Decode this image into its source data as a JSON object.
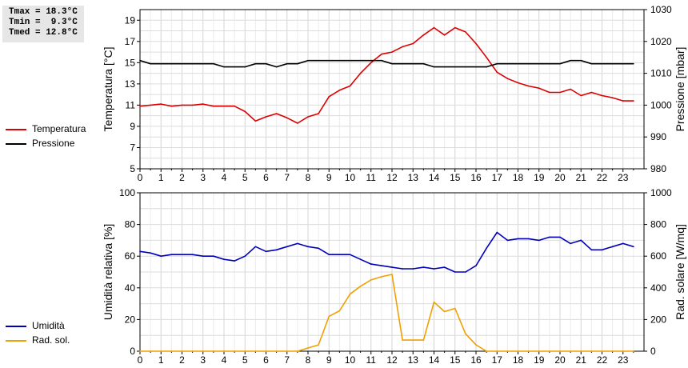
{
  "stats": {
    "tmax": "Tmax = 18.3°C",
    "tmin": "Tmin =  9.3°C",
    "tmed": "Tmed = 12.8°C"
  },
  "chart_data": [
    {
      "type": "line",
      "x_ticks": [
        0,
        1,
        2,
        3,
        4,
        5,
        6,
        7,
        8,
        9,
        10,
        11,
        12,
        13,
        14,
        15,
        16,
        17,
        18,
        19,
        20,
        21,
        22,
        23
      ],
      "xlim": [
        0,
        24
      ],
      "grid": true,
      "legend_placement": "left",
      "left_axis": {
        "label": "Temperatura [°C]",
        "ylim": [
          5,
          20
        ],
        "ticks": [
          5,
          7,
          9,
          11,
          13,
          15,
          17,
          19
        ]
      },
      "right_axis": {
        "label": "Pressione [mbar]",
        "ylim": [
          980,
          1030
        ],
        "ticks": [
          980,
          990,
          1000,
          1010,
          1020,
          1030
        ]
      },
      "series": [
        {
          "name": "Temperatura",
          "axis": "left",
          "color": "#dd0000",
          "x": [
            0,
            0.5,
            1,
            1.5,
            2,
            2.5,
            3,
            3.5,
            4,
            4.5,
            5,
            5.5,
            6,
            6.5,
            7,
            7.5,
            8,
            8.5,
            9,
            9.5,
            10,
            10.5,
            11,
            11.5,
            12,
            12.5,
            13,
            13.5,
            14,
            14.5,
            15,
            15.5,
            16,
            16.5,
            17,
            17.5,
            18,
            18.5,
            19,
            19.5,
            20,
            20.5,
            21,
            21.5,
            22,
            22.5,
            23,
            23.5
          ],
          "y": [
            10.9,
            11.0,
            11.1,
            10.9,
            11.0,
            11.0,
            11.1,
            10.9,
            10.9,
            10.9,
            10.4,
            9.5,
            9.9,
            10.2,
            9.8,
            9.3,
            9.9,
            10.2,
            11.8,
            12.4,
            12.8,
            14.0,
            15.0,
            15.8,
            16.0,
            16.5,
            16.8,
            17.6,
            18.3,
            17.6,
            18.3,
            17.9,
            16.8,
            15.5,
            14.1,
            13.5,
            13.1,
            12.8,
            12.6,
            12.2,
            12.2,
            12.5,
            11.9,
            12.2,
            11.9,
            11.7,
            11.4,
            11.4
          ]
        },
        {
          "name": "Pressione",
          "axis": "right",
          "color": "#000000",
          "x": [
            0,
            0.5,
            1,
            1.5,
            2,
            2.5,
            3,
            3.5,
            4,
            4.5,
            5,
            5.5,
            6,
            6.5,
            7,
            7.5,
            8,
            8.5,
            9,
            9.5,
            10,
            10.5,
            11,
            11.5,
            12,
            12.5,
            13,
            13.5,
            14,
            14.5,
            15,
            15.5,
            16,
            16.5,
            17,
            17.5,
            18,
            18.5,
            19,
            19.5,
            20,
            20.5,
            21,
            21.5,
            22,
            22.5,
            23,
            23.5
          ],
          "y": [
            1014,
            1013,
            1013,
            1013,
            1013,
            1013,
            1013,
            1013,
            1012,
            1012,
            1012,
            1013,
            1013,
            1012,
            1013,
            1013,
            1014,
            1014,
            1014,
            1014,
            1014,
            1014,
            1014,
            1014,
            1013,
            1013,
            1013,
            1013,
            1012,
            1012,
            1012,
            1012,
            1012,
            1012,
            1013,
            1013,
            1013,
            1013,
            1013,
            1013,
            1013,
            1014,
            1014,
            1013,
            1013,
            1013,
            1013,
            1013
          ]
        }
      ]
    },
    {
      "type": "line",
      "x_ticks": [
        0,
        1,
        2,
        3,
        4,
        5,
        6,
        7,
        8,
        9,
        10,
        11,
        12,
        13,
        14,
        15,
        16,
        17,
        18,
        19,
        20,
        21,
        22,
        23
      ],
      "xlim": [
        0,
        24
      ],
      "grid": true,
      "legend_placement": "left",
      "left_axis": {
        "label": "Umidità relativa [%]",
        "ylim": [
          0,
          100
        ],
        "ticks": [
          0,
          20,
          40,
          60,
          80,
          100
        ]
      },
      "right_axis": {
        "label": "Rad. solare [W/mq]",
        "ylim": [
          0,
          1000
        ],
        "ticks": [
          0,
          200,
          400,
          600,
          800,
          1000
        ]
      },
      "series": [
        {
          "name": "Umidità",
          "axis": "left",
          "color": "#0000bb",
          "x": [
            0,
            0.5,
            1,
            1.5,
            2,
            2.5,
            3,
            3.5,
            4,
            4.5,
            5,
            5.5,
            6,
            6.5,
            7,
            7.5,
            8,
            8.5,
            9,
            9.5,
            10,
            10.5,
            11,
            11.5,
            12,
            12.5,
            13,
            13.5,
            14,
            14.5,
            15,
            15.5,
            16,
            16.5,
            17,
            17.5,
            18,
            18.5,
            19,
            19.5,
            20,
            20.5,
            21,
            21.5,
            22,
            22.5,
            23,
            23.5
          ],
          "y": [
            63,
            62,
            60,
            61,
            61,
            61,
            60,
            60,
            58,
            57,
            60,
            66,
            63,
            64,
            66,
            68,
            66,
            65,
            61,
            61,
            61,
            58,
            55,
            54,
            53,
            52,
            52,
            53,
            52,
            53,
            50,
            50,
            54,
            65,
            75,
            70,
            71,
            71,
            70,
            72,
            72,
            68,
            70,
            64,
            64,
            66,
            68,
            66
          ]
        },
        {
          "name": "Rad. sol.",
          "axis": "right",
          "color": "#f0a000",
          "x": [
            0,
            0.5,
            1,
            1.5,
            2,
            2.5,
            3,
            3.5,
            4,
            4.5,
            5,
            5.5,
            6,
            6.5,
            7,
            7.5,
            8,
            8.5,
            9,
            9.5,
            10,
            10.5,
            11,
            11.5,
            12,
            12.5,
            13,
            13.5,
            14,
            14.5,
            15,
            15.5,
            16,
            16.5,
            17,
            17.5,
            18,
            18.5,
            19,
            19.5,
            20,
            20.5,
            21,
            21.5,
            22,
            22.5,
            23,
            23.5
          ],
          "y": [
            0,
            0,
            0,
            0,
            0,
            0,
            0,
            0,
            0,
            0,
            0,
            0,
            0,
            0,
            0,
            0,
            20,
            40,
            220,
            255,
            360,
            410,
            450,
            470,
            485,
            70,
            70,
            70,
            310,
            250,
            270,
            110,
            40,
            0,
            0,
            0,
            0,
            0,
            0,
            0,
            0,
            0,
            0,
            0,
            0,
            0,
            0,
            0
          ]
        }
      ]
    }
  ]
}
